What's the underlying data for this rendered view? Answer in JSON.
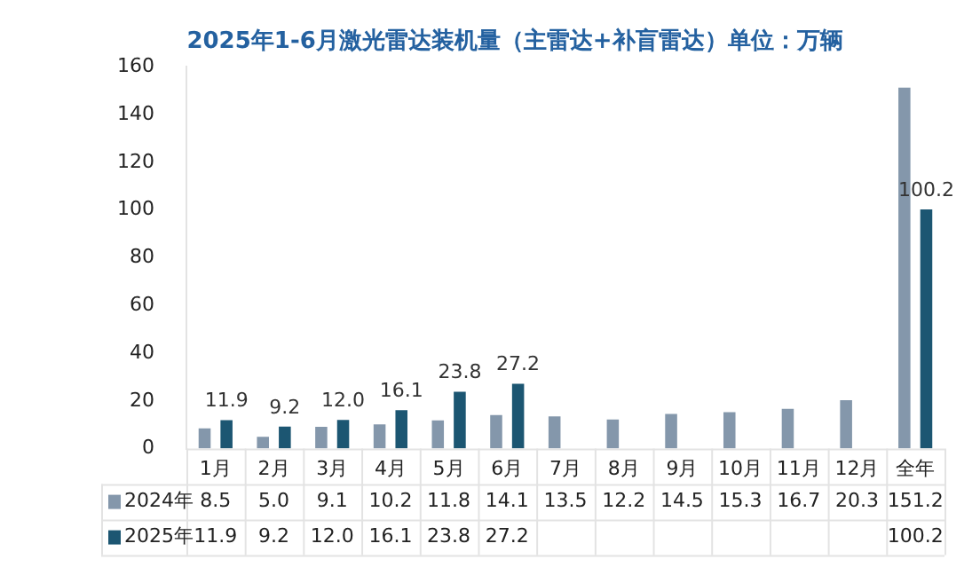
{
  "chart_data": {
    "type": "bar",
    "title": "2025年1-6月激光雷达装机量（主雷达+补盲雷达）单位：万辆",
    "categories": [
      "1月",
      "2月",
      "3月",
      "4月",
      "5月",
      "6月",
      "7月",
      "8月",
      "9月",
      "10月",
      "11月",
      "12月",
      "全年"
    ],
    "series": [
      {
        "name": "2024年",
        "color": "#8497ab",
        "values": [
          8.5,
          5.0,
          9.1,
          10.2,
          11.8,
          14.1,
          13.5,
          12.2,
          14.5,
          15.3,
          16.7,
          20.3,
          151.2
        ],
        "value_labels": [
          "8.5",
          "5.0",
          "9.1",
          "10.2",
          "11.8",
          "14.1",
          "13.5",
          "12.2",
          "14.5",
          "15.3",
          "16.7",
          "20.3",
          "151.2"
        ]
      },
      {
        "name": "2025年",
        "color": "#1c5672",
        "values": [
          11.9,
          9.2,
          12.0,
          16.1,
          23.8,
          27.2,
          null,
          null,
          null,
          null,
          null,
          null,
          100.2
        ],
        "value_labels": [
          "11.9",
          "9.2",
          "12.0",
          "16.1",
          "23.8",
          "27.2",
          null,
          null,
          null,
          null,
          null,
          null,
          "100.2"
        ]
      }
    ],
    "annotations": [
      {
        "text": "11.9",
        "x": "1月",
        "y": 11.9
      },
      {
        "text": "9.2",
        "x": "2月",
        "y": 9.2
      },
      {
        "text": "12.0",
        "x": "3月",
        "y": 12.0
      },
      {
        "text": "16.1",
        "x": "4月",
        "y": 16.1
      },
      {
        "text": "23.8",
        "x": "5月",
        "y": 23.8
      },
      {
        "text": "27.2",
        "x": "6月",
        "y": 27.2
      },
      {
        "text": "100.2",
        "x": "全年",
        "y": 100.2
      }
    ],
    "ylim": [
      0,
      160
    ],
    "yticks": [
      0,
      20,
      40,
      60,
      80,
      100,
      120,
      140,
      160
    ],
    "grid": false,
    "legend": "bottom"
  }
}
